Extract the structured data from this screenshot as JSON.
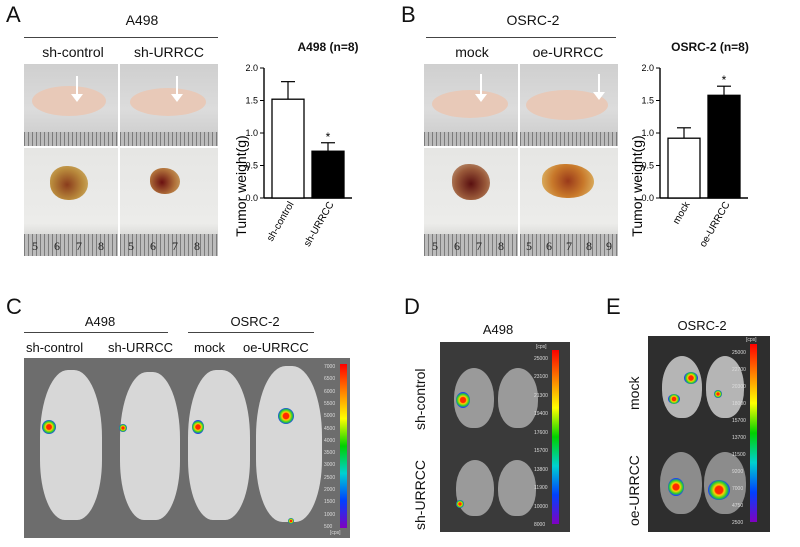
{
  "panel_labels": {
    "a": "A",
    "b": "B",
    "c": "C",
    "d": "D",
    "e": "E"
  },
  "panel_a": {
    "cell_line": "A498",
    "groups": [
      "sh-control",
      "sh-URRCC"
    ],
    "ruler_numbers": [
      "5",
      "6",
      "7",
      "8",
      "5",
      "6",
      "7",
      "8"
    ]
  },
  "panel_b": {
    "cell_line": "OSRC-2",
    "groups": [
      "mock",
      "oe-URRCC"
    ],
    "ruler_numbers": [
      "5",
      "6",
      "7",
      "8",
      "5",
      "6",
      "7",
      "8",
      "9"
    ]
  },
  "panel_c": {
    "cell_lines": [
      "A498",
      "OSRC-2"
    ],
    "groups": [
      "sh-control",
      "sh-URRCC",
      "mock",
      "oe-URRCC"
    ],
    "scale_ticks": [
      "7000",
      "6500",
      "6000",
      "5500",
      "5000",
      "4500",
      "4000",
      "3500",
      "3000",
      "2500",
      "2000",
      "1500",
      "1000",
      "500"
    ],
    "scale_unit": "[cps]"
  },
  "panel_d": {
    "cell_line": "A498",
    "rows": [
      "sh-control",
      "sh-URRCC"
    ],
    "scale_ticks": [
      "25000",
      "23100",
      "21300",
      "19400",
      "17600",
      "15700",
      "13800",
      "11900",
      "10000",
      "8000"
    ],
    "scale_unit": "[cps]"
  },
  "panel_e": {
    "cell_line": "OSRC-2",
    "rows": [
      "mock",
      "oe-URRCC"
    ],
    "scale_ticks": [
      "25000",
      "22700",
      "20300",
      "18000",
      "15700",
      "13700",
      "11500",
      "9200",
      "7000",
      "4750",
      "2500"
    ],
    "scale_unit": "[cps]"
  },
  "chart_data": [
    {
      "type": "bar",
      "title": "A498 (n=8)",
      "categories": [
        "sh-control",
        "sh-URRCC"
      ],
      "values": [
        1.52,
        0.72
      ],
      "errors": [
        0.27,
        0.13
      ],
      "significance": [
        "",
        "*"
      ],
      "bar_fills": [
        "#ffffff",
        "#000000"
      ],
      "ylabel": "Tumor weight(g)",
      "ylim": [
        0,
        2.0
      ],
      "yticks": [
        "0.0",
        "0.5",
        "1.0",
        "1.5",
        "2.0"
      ]
    },
    {
      "type": "bar",
      "title": "OSRC-2 (n=8)",
      "categories": [
        "mock",
        "oe-URRCC"
      ],
      "values": [
        0.92,
        1.58
      ],
      "errors": [
        0.16,
        0.14
      ],
      "significance": [
        "",
        "*"
      ],
      "bar_fills": [
        "#ffffff",
        "#000000"
      ],
      "ylabel": "Tumor weight(g)",
      "ylim": [
        0,
        2.0
      ],
      "yticks": [
        "0.0",
        "0.5",
        "1.0",
        "1.5",
        "2.0"
      ]
    }
  ]
}
